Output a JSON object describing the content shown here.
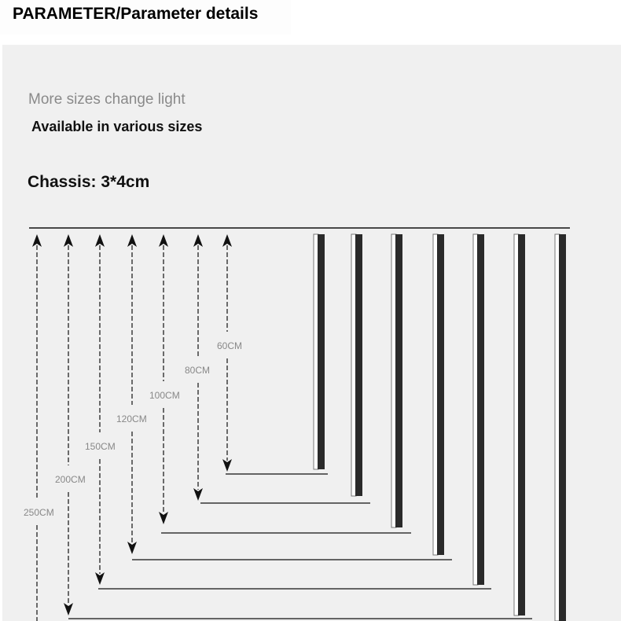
{
  "header": {
    "title": "PARAMETER/Parameter details"
  },
  "intro": {
    "subtitle": "More sizes change light",
    "tagline": "Available in various sizes",
    "chassis": "Chassis: 3*4cm"
  },
  "sizes": [
    {
      "label": "60CM",
      "value_cm": 60
    },
    {
      "label": "80CM",
      "value_cm": 80
    },
    {
      "label": "100CM",
      "value_cm": 100
    },
    {
      "label": "120CM",
      "value_cm": 120
    },
    {
      "label": "150CM",
      "value_cm": 150
    },
    {
      "label": "200CM",
      "value_cm": 200
    },
    {
      "label": "250CM",
      "value_cm": 250
    }
  ],
  "colors": {
    "panel": "#f0f0f0",
    "bar": "#2a2a2a",
    "label": "#888888"
  }
}
